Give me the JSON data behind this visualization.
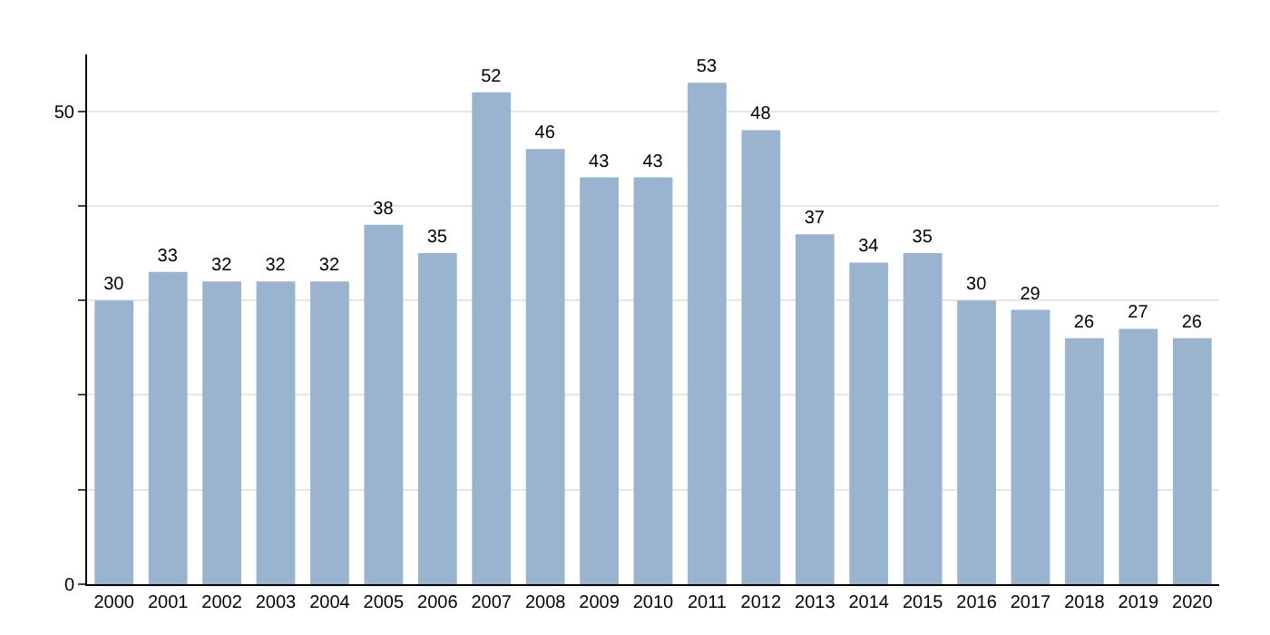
{
  "chart_data": {
    "type": "bar",
    "categories": [
      "2000",
      "2001",
      "2002",
      "2003",
      "2004",
      "2005",
      "2006",
      "2007",
      "2008",
      "2009",
      "2010",
      "2011",
      "2012",
      "2013",
      "2014",
      "2015",
      "2016",
      "2017",
      "2018",
      "2019",
      "2020"
    ],
    "values": [
      30,
      33,
      32,
      32,
      32,
      38,
      35,
      52,
      46,
      43,
      43,
      53,
      48,
      37,
      34,
      35,
      30,
      29,
      26,
      27,
      26
    ],
    "color": "#9ab3cf",
    "ylim": [
      0,
      56
    ],
    "yticks": [
      0,
      {
        "value": 10,
        "label": null
      },
      {
        "value": 20,
        "label": null
      },
      {
        "value": 30,
        "label": null
      },
      {
        "value": 40,
        "label": null
      },
      50
    ],
    "grid": "y",
    "data_labels": true
  }
}
